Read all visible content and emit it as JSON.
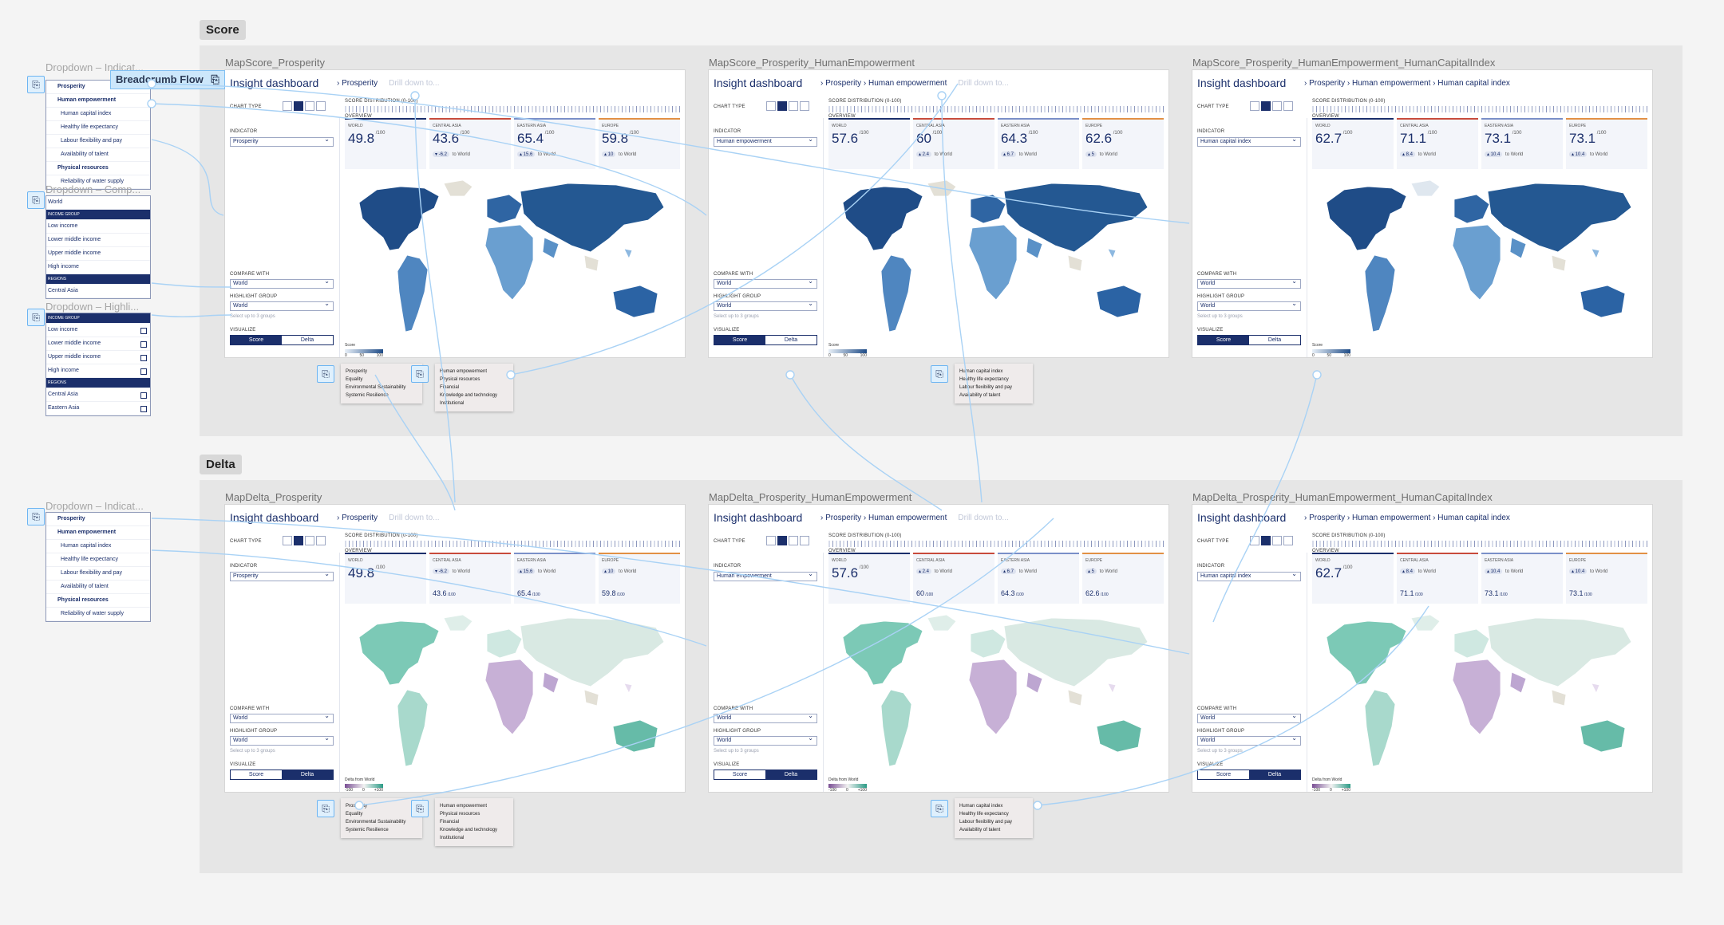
{
  "sections": [
    {
      "name": "Score",
      "frames": [
        {
          "label": "MapScore_Prosperity",
          "crumbs": [
            "Prosperity",
            "Drill down to..."
          ],
          "viz": "score",
          "indicator": "Prosperity",
          "icons_active": 1,
          "cards": [
            {
              "name": "WORLD",
              "value": "49.8",
              "delta": ""
            },
            {
              "name": "CENTRAL ASIA",
              "value": "43.6",
              "delta": "-6.2"
            },
            {
              "name": "EASTERN ASIA",
              "value": "65.4",
              "delta": "15.6"
            },
            {
              "name": "EUROPE",
              "value": "59.8",
              "delta": "10"
            }
          ],
          "popovers": [
            [
              "Prosperity",
              "Equality",
              "Environmental Sustainability",
              "Systemic Resilience"
            ],
            [
              "Human empowerment",
              "Physical resources",
              "Financial",
              "Knowledge and technology",
              "Institutional"
            ]
          ]
        },
        {
          "label": "MapScore_Prosperity_HumanEmpowerment",
          "crumbs": [
            "Prosperity",
            "Human empowerment",
            "Drill down to..."
          ],
          "viz": "score",
          "indicator": "Human empowerment",
          "icons_active": 1,
          "cards": [
            {
              "name": "WORLD",
              "value": "57.6",
              "delta": ""
            },
            {
              "name": "CENTRAL ASIA",
              "value": "60",
              "delta": "2.4"
            },
            {
              "name": "EASTERN ASIA",
              "value": "64.3",
              "delta": "6.7"
            },
            {
              "name": "EUROPE",
              "value": "62.6",
              "delta": "5"
            }
          ],
          "popovers": [
            [
              "Human capital index",
              "Healthy life expectancy",
              "Labour flexibility and pay",
              "Availability of talent"
            ]
          ]
        },
        {
          "label": "MapScore_Prosperity_HumanEmpowerment_HumanCapitalIndex",
          "crumbs": [
            "Prosperity",
            "Human empowerment",
            "Human capital index"
          ],
          "viz": "score",
          "indicator": "Human capital index",
          "icons_active": 1,
          "cards": [
            {
              "name": "WORLD",
              "value": "62.7",
              "delta": ""
            },
            {
              "name": "CENTRAL ASIA",
              "value": "71.1",
              "delta": "8.4"
            },
            {
              "name": "EASTERN ASIA",
              "value": "73.1",
              "delta": "10.4"
            },
            {
              "name": "EUROPE",
              "value": "73.1",
              "delta": "10.4"
            }
          ],
          "popovers": []
        }
      ]
    },
    {
      "name": "Delta",
      "frames": [
        {
          "label": "MapDelta_Prosperity",
          "crumbs": [
            "Prosperity",
            "Drill down to..."
          ],
          "viz": "delta",
          "indicator": "Prosperity",
          "icons_active": 1,
          "cards": [
            {
              "name": "WORLD",
              "value": "49.8",
              "delta": ""
            },
            {
              "name": "CENTRAL ASIA",
              "value": "43.6",
              "delta": "-6.2"
            },
            {
              "name": "EASTERN ASIA",
              "value": "65.4",
              "delta": "15.6"
            },
            {
              "name": "EUROPE",
              "value": "59.8",
              "delta": "10"
            }
          ],
          "popovers": [
            [
              "Prosperity",
              "Equality",
              "Environmental Sustainability",
              "Systemic Resilience"
            ],
            [
              "Human empowerment",
              "Physical resources",
              "Financial",
              "Knowledge and technology",
              "Institutional"
            ]
          ]
        },
        {
          "label": "MapDelta_Prosperity_HumanEmpowerment",
          "crumbs": [
            "Prosperity",
            "Human empowerment",
            "Drill down to..."
          ],
          "viz": "delta",
          "indicator": "Human empowerment",
          "icons_active": 1,
          "cards": [
            {
              "name": "WORLD",
              "value": "57.6",
              "delta": ""
            },
            {
              "name": "CENTRAL ASIA",
              "value": "60",
              "delta": "2.4"
            },
            {
              "name": "EASTERN ASIA",
              "value": "64.3",
              "delta": "6.7"
            },
            {
              "name": "EUROPE",
              "value": "62.6",
              "delta": "5"
            }
          ],
          "popovers": [
            [
              "Human capital index",
              "Healthy life expectancy",
              "Labour flexibility and pay",
              "Availability of talent"
            ]
          ]
        },
        {
          "label": "MapDelta_Prosperity_HumanEmpowerment_HumanCapitalIndex",
          "crumbs": [
            "Prosperity",
            "Human empowerment",
            "Human capital index"
          ],
          "viz": "delta",
          "indicator": "Human capital index",
          "icons_active": 1,
          "cards": [
            {
              "name": "WORLD",
              "value": "62.7",
              "delta": ""
            },
            {
              "name": "CENTRAL ASIA",
              "value": "71.1",
              "delta": "8.4"
            },
            {
              "name": "EASTERN ASIA",
              "value": "73.1",
              "delta": "10.4"
            },
            {
              "name": "EUROPE",
              "value": "73.1",
              "delta": "10.4"
            }
          ],
          "popovers": []
        }
      ]
    }
  ],
  "dashboard": {
    "title": "Insight dashboard",
    "chart_type_label": "CHART TYPE",
    "distribution_label": "SCORE DISTRIBUTION (0-100)",
    "overview_label": "OVERVIEW",
    "indicator_label": "INDICATOR",
    "compare_label": "COMPARE WITH",
    "compare_value": "World",
    "highlight_label": "HIGHLIGHT GROUP",
    "highlight_value": "World",
    "highlight_hint": "Select up to 3 groups",
    "visualize_label": "VISUALIZE",
    "viz_options": [
      "Score",
      "Delta"
    ],
    "max_suffix": "/100",
    "to_world": "to World",
    "score_legend": "Score",
    "score_ticks": [
      "0",
      "50",
      "100"
    ],
    "delta_legend": "Delta from World",
    "delta_ticks": [
      "-100",
      "0",
      "+100"
    ]
  },
  "flow_chip": "Breadcrumb Flow",
  "dropdown_panels": [
    {
      "label": "Dropdown – Indicat...",
      "rows": [
        {
          "t": "Prosperity",
          "k": "strong"
        },
        {
          "t": "Human empowerment",
          "k": "strong"
        },
        {
          "t": "Human capital index",
          "k": "sub"
        },
        {
          "t": "Healthy life expectancy",
          "k": "sub"
        },
        {
          "t": "Labour flexibility and pay",
          "k": "sub"
        },
        {
          "t": "Availability of talent",
          "k": "sub"
        },
        {
          "t": "Physical resources",
          "k": "strong"
        },
        {
          "t": "Reliability of water supply",
          "k": "sub"
        }
      ]
    },
    {
      "label": "Dropdown – Comp...",
      "rows": [
        {
          "t": "World",
          "k": "plain"
        },
        {
          "t": "INCOME GROUP",
          "k": "hd"
        },
        {
          "t": "Low income",
          "k": "plain"
        },
        {
          "t": "Lower middle income",
          "k": "plain"
        },
        {
          "t": "Upper middle income",
          "k": "plain"
        },
        {
          "t": "High income",
          "k": "plain"
        },
        {
          "t": "REGIONS",
          "k": "hd"
        },
        {
          "t": "Central Asia",
          "k": "plain"
        }
      ]
    },
    {
      "label": "Dropdown – Highli...",
      "rows": [
        {
          "t": "INCOME GROUP",
          "k": "hd"
        },
        {
          "t": "Low income",
          "k": "cb"
        },
        {
          "t": "Lower middle income",
          "k": "cb"
        },
        {
          "t": "Upper middle income",
          "k": "cb"
        },
        {
          "t": "High income",
          "k": "cb"
        },
        {
          "t": "REGIONS",
          "k": "hd"
        },
        {
          "t": "Central Asia",
          "k": "cb"
        },
        {
          "t": "Eastern Asia",
          "k": "cb"
        }
      ]
    },
    {
      "label": "Dropdown – Indicat...",
      "rows": [
        {
          "t": "Prosperity",
          "k": "strong"
        },
        {
          "t": "Human empowerment",
          "k": "strong"
        },
        {
          "t": "Human capital index",
          "k": "sub"
        },
        {
          "t": "Healthy life expectancy",
          "k": "sub"
        },
        {
          "t": "Labour flexibility and pay",
          "k": "sub"
        },
        {
          "t": "Availability of talent",
          "k": "sub"
        },
        {
          "t": "Physical resources",
          "k": "strong"
        },
        {
          "t": "Reliability of water supply",
          "k": "sub"
        }
      ]
    }
  ],
  "colors": {
    "navy": "#1b2f6b",
    "score_dark": "#1f4c87",
    "score_light": "#c5dbef",
    "delta_pos": "#7cc9b6",
    "delta_neg": "#c7b0d6",
    "neutral": "#e3e0d6",
    "connector": "#a9d2f5"
  },
  "icons": {
    "prototype": "prototype-link-icon",
    "chart_type": [
      "map-icon",
      "bar-icon",
      "dot-icon",
      "table-icon"
    ]
  }
}
